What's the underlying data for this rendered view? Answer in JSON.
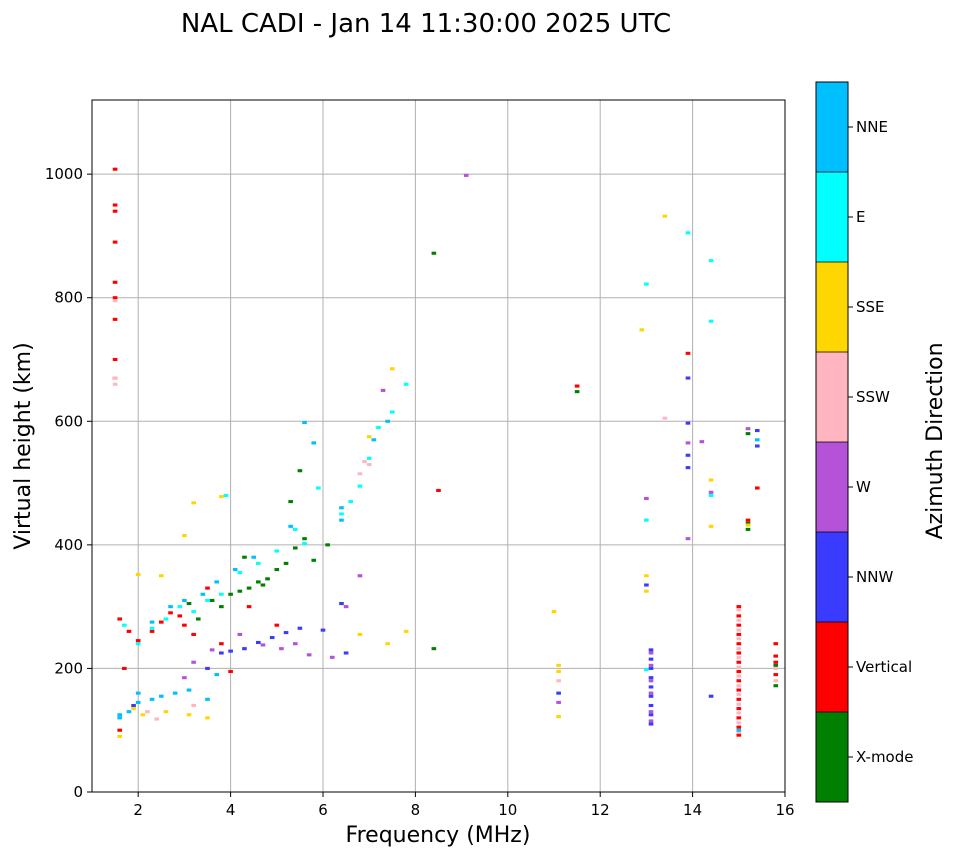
{
  "chart_data": {
    "type": "scatter",
    "title": "NAL CADI - Jan 14 11:30:00 2025 UTC",
    "xlabel": "Frequency (MHz)",
    "ylabel": "Virtual height (km)",
    "xlim": [
      1,
      16
    ],
    "ylim": [
      0,
      1120
    ],
    "xticks": [
      2,
      4,
      6,
      8,
      10,
      12,
      14,
      16
    ],
    "yticks": [
      0,
      200,
      400,
      600,
      800,
      1000
    ],
    "grid": true,
    "colorbar": {
      "label": "Azimuth Direction",
      "placement": "right",
      "categories": [
        {
          "name": "X-mode",
          "color": "#008000"
        },
        {
          "name": "Vertical",
          "color": "#ff0000"
        },
        {
          "name": "NNW",
          "color": "#3b3bff"
        },
        {
          "name": "W",
          "color": "#b452d8"
        },
        {
          "name": "SSW",
          "color": "#ffb6c1"
        },
        {
          "name": "SSE",
          "color": "#ffd700"
        },
        {
          "name": "E",
          "color": "#00ffff"
        },
        {
          "name": "NNE",
          "color": "#00bfff"
        }
      ]
    },
    "series": [
      {
        "name": "X-mode",
        "points": [
          [
            3.3,
            280
          ],
          [
            3.6,
            310
          ],
          [
            3.8,
            300
          ],
          [
            4.0,
            320
          ],
          [
            4.2,
            325
          ],
          [
            4.4,
            330
          ],
          [
            4.6,
            340
          ],
          [
            4.8,
            345
          ],
          [
            5.0,
            360
          ],
          [
            5.2,
            370
          ],
          [
            5.4,
            395
          ],
          [
            5.6,
            410
          ],
          [
            5.3,
            470
          ],
          [
            5.5,
            520
          ],
          [
            6.1,
            400
          ],
          [
            4.3,
            380
          ],
          [
            8.4,
            872
          ],
          [
            8.4,
            232
          ],
          [
            11.5,
            648
          ],
          [
            15.2,
            425
          ],
          [
            15.2,
            435
          ],
          [
            15.2,
            580
          ],
          [
            15.8,
            205
          ],
          [
            15.8,
            172
          ],
          [
            3.1,
            305
          ],
          [
            4.7,
            335
          ],
          [
            5.8,
            375
          ]
        ]
      },
      {
        "name": "Vertical",
        "points": [
          [
            1.5,
            1008
          ],
          [
            1.5,
            950
          ],
          [
            1.5,
            940
          ],
          [
            1.5,
            890
          ],
          [
            1.5,
            825
          ],
          [
            1.5,
            800
          ],
          [
            1.5,
            765
          ],
          [
            1.5,
            700
          ],
          [
            1.5,
            670
          ],
          [
            1.6,
            280
          ],
          [
            1.8,
            260
          ],
          [
            2.0,
            245
          ],
          [
            2.3,
            260
          ],
          [
            2.5,
            275
          ],
          [
            2.7,
            290
          ],
          [
            2.9,
            285
          ],
          [
            3.2,
            255
          ],
          [
            4.0,
            195
          ],
          [
            3.8,
            240
          ],
          [
            3.0,
            270
          ],
          [
            3.5,
            330
          ],
          [
            4.4,
            300
          ],
          [
            5.0,
            270
          ],
          [
            8.5,
            488
          ],
          [
            11.5,
            657
          ],
          [
            13.9,
            710
          ],
          [
            15.4,
            492
          ],
          [
            15.2,
            440
          ],
          [
            15.0,
            300
          ],
          [
            15.0,
            285
          ],
          [
            15.0,
            270
          ],
          [
            15.0,
            255
          ],
          [
            15.0,
            240
          ],
          [
            15.0,
            225
          ],
          [
            15.0,
            210
          ],
          [
            15.0,
            195
          ],
          [
            15.0,
            180
          ],
          [
            15.0,
            165
          ],
          [
            15.0,
            150
          ],
          [
            15.0,
            135
          ],
          [
            15.0,
            120
          ],
          [
            15.0,
            105
          ],
          [
            15.0,
            92
          ],
          [
            15.8,
            240
          ],
          [
            15.8,
            220
          ],
          [
            15.8,
            210
          ],
          [
            15.8,
            190
          ],
          [
            1.6,
            100
          ],
          [
            1.7,
            200
          ]
        ]
      },
      {
        "name": "NNW",
        "points": [
          [
            3.5,
            200
          ],
          [
            3.8,
            225
          ],
          [
            4.0,
            228
          ],
          [
            4.3,
            232
          ],
          [
            4.6,
            242
          ],
          [
            4.9,
            250
          ],
          [
            5.2,
            258
          ],
          [
            5.5,
            265
          ],
          [
            6.0,
            262
          ],
          [
            6.4,
            305
          ],
          [
            6.5,
            225
          ],
          [
            13.1,
            230
          ],
          [
            13.1,
            215
          ],
          [
            13.1,
            200
          ],
          [
            13.1,
            185
          ],
          [
            13.1,
            170
          ],
          [
            13.1,
            155
          ],
          [
            13.1,
            140
          ],
          [
            13.1,
            125
          ],
          [
            13.1,
            110
          ],
          [
            13.9,
            670
          ],
          [
            13.9,
            597
          ],
          [
            13.9,
            545
          ],
          [
            13.9,
            525
          ],
          [
            14.4,
            155
          ],
          [
            15.4,
            560
          ],
          [
            15.4,
            585
          ],
          [
            11.1,
            160
          ],
          [
            13.0,
            335
          ],
          [
            1.9,
            140
          ]
        ]
      },
      {
        "name": "W",
        "points": [
          [
            3.0,
            185
          ],
          [
            3.2,
            210
          ],
          [
            3.6,
            230
          ],
          [
            4.2,
            255
          ],
          [
            4.7,
            238
          ],
          [
            5.1,
            232
          ],
          [
            5.4,
            240
          ],
          [
            5.7,
            222
          ],
          [
            6.2,
            218
          ],
          [
            6.5,
            300
          ],
          [
            6.8,
            350
          ],
          [
            13.0,
            475
          ],
          [
            13.1,
            225
          ],
          [
            13.1,
            205
          ],
          [
            13.1,
            180
          ],
          [
            13.1,
            160
          ],
          [
            13.1,
            130
          ],
          [
            13.1,
            115
          ],
          [
            13.9,
            410
          ],
          [
            13.9,
            565
          ],
          [
            14.2,
            567
          ],
          [
            15.2,
            588
          ],
          [
            11.1,
            145
          ],
          [
            9.1,
            998
          ],
          [
            14.4,
            485
          ],
          [
            7.3,
            650
          ]
        ]
      },
      {
        "name": "SSW",
        "points": [
          [
            1.5,
            795
          ],
          [
            1.5,
            660
          ],
          [
            13.4,
            605
          ],
          [
            15.0,
            295
          ],
          [
            15.0,
            278
          ],
          [
            15.0,
            262
          ],
          [
            15.0,
            248
          ],
          [
            15.0,
            232
          ],
          [
            15.0,
            218
          ],
          [
            15.0,
            202
          ],
          [
            15.0,
            188
          ],
          [
            15.0,
            172
          ],
          [
            15.0,
            158
          ],
          [
            15.0,
            142
          ],
          [
            15.0,
            128
          ],
          [
            15.0,
            112
          ],
          [
            15.0,
            98
          ],
          [
            15.8,
            200
          ],
          [
            15.8,
            180
          ],
          [
            7.0,
            530
          ],
          [
            6.8,
            515
          ],
          [
            2.4,
            118
          ],
          [
            2.2,
            130
          ],
          [
            3.2,
            140
          ],
          [
            11.1,
            180
          ],
          [
            6.9,
            535
          ],
          [
            1.5,
            670
          ]
        ]
      },
      {
        "name": "SSE",
        "points": [
          [
            1.6,
            90
          ],
          [
            1.9,
            135
          ],
          [
            2.1,
            125
          ],
          [
            2.6,
            130
          ],
          [
            3.1,
            125
          ],
          [
            3.5,
            120
          ],
          [
            3.8,
            478
          ],
          [
            2.5,
            350
          ],
          [
            3.0,
            415
          ],
          [
            3.2,
            468
          ],
          [
            7.0,
            575
          ],
          [
            7.5,
            685
          ],
          [
            7.8,
            260
          ],
          [
            7.4,
            240
          ],
          [
            11.1,
            205
          ],
          [
            11.1,
            195
          ],
          [
            11.1,
            122
          ],
          [
            11.0,
            292
          ],
          [
            12.9,
            748
          ],
          [
            13.0,
            350
          ],
          [
            13.0,
            325
          ],
          [
            13.4,
            932
          ],
          [
            14.4,
            505
          ],
          [
            14.4,
            430
          ],
          [
            15.2,
            432
          ],
          [
            6.8,
            255
          ],
          [
            2.0,
            352
          ]
        ]
      },
      {
        "name": "E",
        "points": [
          [
            1.7,
            270
          ],
          [
            2.0,
            240
          ],
          [
            2.3,
            265
          ],
          [
            2.6,
            280
          ],
          [
            2.9,
            300
          ],
          [
            3.2,
            292
          ],
          [
            3.5,
            310
          ],
          [
            3.8,
            320
          ],
          [
            4.2,
            355
          ],
          [
            4.6,
            370
          ],
          [
            5.0,
            390
          ],
          [
            5.4,
            425
          ],
          [
            5.6,
            402
          ],
          [
            5.9,
            492
          ],
          [
            6.4,
            450
          ],
          [
            6.6,
            470
          ],
          [
            6.8,
            495
          ],
          [
            7.0,
            540
          ],
          [
            7.2,
            590
          ],
          [
            7.5,
            615
          ],
          [
            13.0,
            822
          ],
          [
            13.0,
            440
          ],
          [
            13.0,
            198
          ],
          [
            13.9,
            905
          ],
          [
            14.4,
            860
          ],
          [
            14.4,
            762
          ],
          [
            14.4,
            480
          ],
          [
            7.8,
            660
          ],
          [
            3.9,
            480
          ]
        ]
      },
      {
        "name": "NNE",
        "points": [
          [
            1.6,
            120
          ],
          [
            1.8,
            130
          ],
          [
            2.0,
            145
          ],
          [
            2.3,
            150
          ],
          [
            2.5,
            155
          ],
          [
            2.8,
            160
          ],
          [
            3.1,
            165
          ],
          [
            3.5,
            150
          ],
          [
            3.7,
            190
          ],
          [
            2.3,
            275
          ],
          [
            2.7,
            300
          ],
          [
            3.0,
            310
          ],
          [
            3.4,
            320
          ],
          [
            3.7,
            340
          ],
          [
            4.1,
            360
          ],
          [
            4.5,
            380
          ],
          [
            5.3,
            430
          ],
          [
            5.6,
            598
          ],
          [
            6.4,
            440
          ],
          [
            6.4,
            460
          ],
          [
            7.1,
            570
          ],
          [
            7.4,
            600
          ],
          [
            5.8,
            565
          ],
          [
            15.4,
            570
          ],
          [
            15.0,
            100
          ],
          [
            1.6,
            125
          ],
          [
            2.0,
            160
          ]
        ]
      }
    ]
  }
}
